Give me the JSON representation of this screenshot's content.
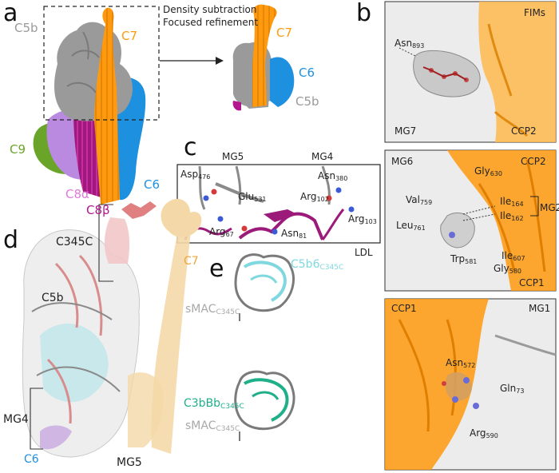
{
  "panels": {
    "a": {
      "letter": "a",
      "labels": {
        "c5b": "C5b",
        "c7": "C7",
        "c9": "C9",
        "c8a": "C8α",
        "c8b": "C8β",
        "c6": "C6"
      },
      "process_note_line1": "Density subtraction",
      "process_note_line2": "Focused refinement",
      "result_labels": {
        "c7": "C7",
        "c6": "C6",
        "c5b": "C5b"
      }
    },
    "b": {
      "letter": "b",
      "sub1": {
        "labels": {
          "fims": "FIMs",
          "asn": "Asn",
          "asn_sub": "893",
          "mg7": "MG7",
          "ccp2": "CCP2"
        }
      },
      "sub2": {
        "labels": {
          "mg6": "MG6",
          "gly": "Gly",
          "gly_sub": "630",
          "ccp2": "CCP2",
          "val": "Val",
          "val_sub": "759",
          "ile164": "Ile",
          "ile164_sub": "164",
          "ile162": "Ile",
          "ile162_sub": "162",
          "mg2": "MG2",
          "leu": "Leu",
          "leu_sub": "761",
          "ile607": "Ile",
          "ile607_sub": "607",
          "trp": "Trp",
          "trp_sub": "581",
          "gly580": "Gly",
          "gly580_sub": "580",
          "ccp1": "CCP1"
        }
      },
      "sub3": {
        "labels": {
          "ccp1": "CCP1",
          "mg1": "MG1",
          "asn": "Asn",
          "asn_sub": "572",
          "gln": "Gln",
          "gln_sub": "73",
          "arg": "Arg",
          "arg_sub": "590"
        }
      }
    },
    "c": {
      "letter": "c",
      "labels": {
        "mg5": "MG5",
        "mg4": "MG4",
        "asp": "Asp",
        "asp_sub": "476",
        "asn380": "Asn",
        "asn380_sub": "380",
        "glu": "Glu",
        "glu_sub": "531",
        "arg102": "Arg",
        "arg102_sub": "102",
        "arg103": "Arg",
        "arg103_sub": "103",
        "arg67": "Arg",
        "arg67_sub": "67",
        "asn81": "Asn",
        "asn81_sub": "81",
        "ldl": "LDL"
      }
    },
    "d": {
      "letter": "d",
      "labels": {
        "c345c": "C345C",
        "c7": "C7",
        "c5b": "C5b",
        "mg4": "MG4",
        "c6": "C6",
        "mg5": "MG5"
      }
    },
    "e": {
      "letter": "e",
      "top": {
        "name": "C5b6",
        "name_sub": "C345C",
        "ref": "sMAC",
        "ref_sub": "C345C"
      },
      "bottom": {
        "name": "C3bBb",
        "name_sub": "C345C",
        "ref": "sMAC",
        "ref_sub": "C345C"
      }
    }
  },
  "colors": {
    "c5b": "#9a9a9a",
    "c7": "#ff9a0f",
    "c6": "#1e90e0",
    "c9": "#6aa52a",
    "c8a": "#e07ad8",
    "c8b": "#b3168c",
    "ldl": "#9b1a7a",
    "cyan": "#7fd8df",
    "teal": "#1fb089"
  }
}
